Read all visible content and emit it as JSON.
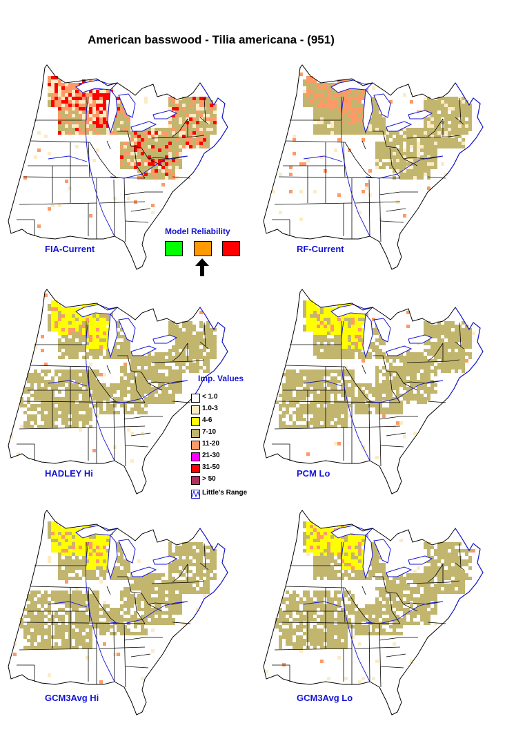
{
  "title": "American basswood - Tilia americana - (951)",
  "maps": [
    {
      "id": "fia-current",
      "label": "FIA-Current",
      "scenario": "observed"
    },
    {
      "id": "rf-current",
      "label": "RF-Current",
      "scenario": "current"
    },
    {
      "id": "hadley-hi",
      "label": "HADLEY Hi",
      "scenario": "future-high"
    },
    {
      "id": "pcm-lo",
      "label": "PCM Lo",
      "scenario": "future-low"
    },
    {
      "id": "gcm3avg-hi",
      "label": "GCM3Avg Hi",
      "scenario": "future-high"
    },
    {
      "id": "gcm3avg-lo",
      "label": "GCM3Avg Lo",
      "scenario": "future-low"
    }
  ],
  "model_reliability": {
    "title": "Model Reliability",
    "levels": [
      {
        "name": "high",
        "color": "#00ff00"
      },
      {
        "name": "medium",
        "color": "#ff9900"
      },
      {
        "name": "low",
        "color": "#ff0000"
      }
    ],
    "selected": "medium"
  },
  "legend": {
    "title": "Imp. Values",
    "items": [
      {
        "label": "< 1.0",
        "color": "#ffffff"
      },
      {
        "label": "1.0-3",
        "color": "#fcebc4"
      },
      {
        "label": "4-6",
        "color": "#ffff00"
      },
      {
        "label": "7-10",
        "color": "#c2b66f"
      },
      {
        "label": "11-20",
        "color": "#ff9966"
      },
      {
        "label": "21-30",
        "color": "#ff00ff"
      },
      {
        "label": "31-50",
        "color": "#ff0000"
      },
      {
        "label": "> 50",
        "color": "#b03060"
      }
    ],
    "range_label": "Little's Range",
    "range_color": "#1414d6"
  },
  "colors": {
    "outline": "#000000",
    "water": "#1414d6",
    "label": "#1414d6"
  }
}
